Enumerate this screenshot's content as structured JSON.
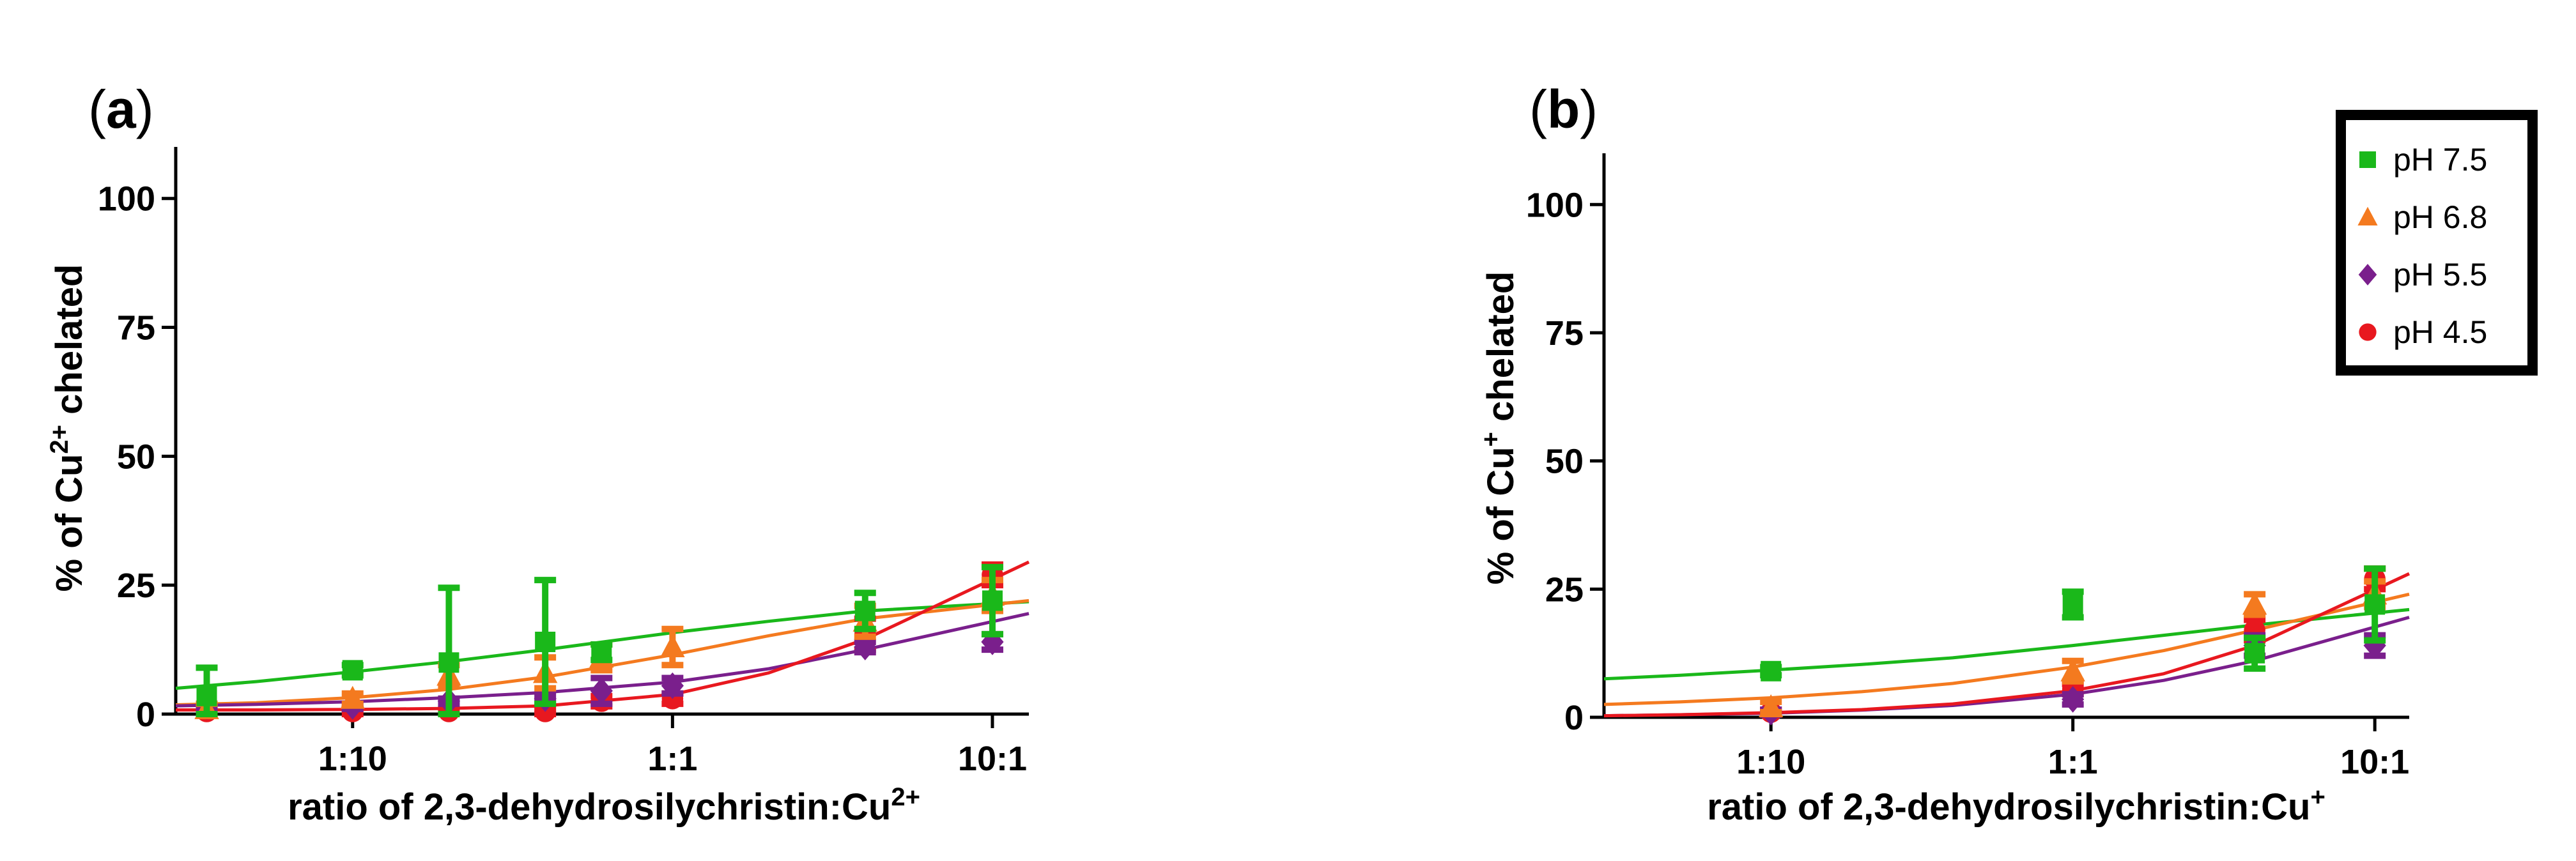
{
  "chart_data": [
    {
      "type": "scatter",
      "panel": "a",
      "xscale": "log",
      "xlim": [
        0.028,
        13
      ],
      "ylim": [
        0,
        110
      ],
      "ylabel_parts": [
        "% of Cu",
        "2+",
        " chelated"
      ],
      "xlabel_parts": [
        "ratio of 2,3-dehydrosilychristin:Cu",
        "2+"
      ],
      "xticks": [
        {
          "value": 0.1,
          "label": "1:10"
        },
        {
          "value": 1,
          "label": "1:1"
        },
        {
          "value": 10,
          "label": "10:1"
        }
      ],
      "yticks": [
        {
          "value": 0,
          "label": "0"
        },
        {
          "value": 25,
          "label": "25"
        },
        {
          "value": 50,
          "label": "50"
        },
        {
          "value": 75,
          "label": "75"
        },
        {
          "value": 100,
          "label": "100"
        }
      ],
      "series": [
        {
          "name": "pH 7.5",
          "color": "#1ab81a",
          "marker": "square",
          "points": [
            {
              "x": 0.035,
              "y": 3.5,
              "err": 5.5
            },
            {
              "x": 0.1,
              "y": 8.5,
              "err": 1
            },
            {
              "x": 0.2,
              "y": 10,
              "err": 14.5
            },
            {
              "x": 0.4,
              "y": 14,
              "err": 12
            },
            {
              "x": 0.6,
              "y": 12,
              "err": 1.5
            },
            {
              "x": 4,
              "y": 20,
              "err": 3.5
            },
            {
              "x": 10,
              "y": 22,
              "err": 6.5
            }
          ],
          "fit": [
            {
              "x": 0.028,
              "y": 5
            },
            {
              "x": 0.05,
              "y": 6.3
            },
            {
              "x": 0.1,
              "y": 8.2
            },
            {
              "x": 0.2,
              "y": 10.2
            },
            {
              "x": 0.4,
              "y": 12.5
            },
            {
              "x": 1,
              "y": 15.8
            },
            {
              "x": 2,
              "y": 18
            },
            {
              "x": 4,
              "y": 20
            },
            {
              "x": 13,
              "y": 21.8
            }
          ]
        },
        {
          "name": "pH 6.8",
          "color": "#f47a1f",
          "marker": "triangle",
          "points": [
            {
              "x": 0.035,
              "y": 1,
              "err": 1
            },
            {
              "x": 0.1,
              "y": 3,
              "err": 1
            },
            {
              "x": 0.2,
              "y": 7.5,
              "err": 2
            },
            {
              "x": 0.4,
              "y": 8,
              "err": 3
            },
            {
              "x": 0.6,
              "y": 11,
              "err": 2.5
            },
            {
              "x": 1,
              "y": 13,
              "err": 3.5
            },
            {
              "x": 4,
              "y": 18,
              "err": 3
            },
            {
              "x": 10,
              "y": 23,
              "err": 3
            }
          ],
          "fit": [
            {
              "x": 0.028,
              "y": 1.8
            },
            {
              "x": 0.05,
              "y": 2.2
            },
            {
              "x": 0.1,
              "y": 3.2
            },
            {
              "x": 0.2,
              "y": 4.8
            },
            {
              "x": 0.4,
              "y": 7.2
            },
            {
              "x": 1,
              "y": 11.5
            },
            {
              "x": 2,
              "y": 15.2
            },
            {
              "x": 4,
              "y": 18.5
            },
            {
              "x": 13,
              "y": 22
            }
          ]
        },
        {
          "name": "pH 5.5",
          "color": "#7a1f8c",
          "marker": "diamond",
          "points": [
            {
              "x": 0.035,
              "y": 1.5,
              "err": 0.5
            },
            {
              "x": 0.1,
              "y": 1.5,
              "err": 0.5
            },
            {
              "x": 0.2,
              "y": 2.5,
              "err": 0.5
            },
            {
              "x": 0.4,
              "y": 3,
              "err": 0.5
            },
            {
              "x": 0.6,
              "y": 4.5,
              "err": 2.5
            },
            {
              "x": 1,
              "y": 5.5,
              "err": 1.5
            },
            {
              "x": 4,
              "y": 13,
              "err": 1
            },
            {
              "x": 10,
              "y": 14,
              "err": 1.5
            }
          ],
          "fit": [
            {
              "x": 0.028,
              "y": 1.6
            },
            {
              "x": 0.05,
              "y": 1.9
            },
            {
              "x": 0.1,
              "y": 2.4
            },
            {
              "x": 0.2,
              "y": 3.2
            },
            {
              "x": 0.4,
              "y": 4.2
            },
            {
              "x": 1,
              "y": 6.2
            },
            {
              "x": 2,
              "y": 8.8
            },
            {
              "x": 4,
              "y": 12.5
            },
            {
              "x": 13,
              "y": 19.5
            }
          ]
        },
        {
          "name": "pH 4.5",
          "color": "#e8181f",
          "marker": "circle",
          "points": [
            {
              "x": 0.035,
              "y": 0.5,
              "err": 0.5
            },
            {
              "x": 0.1,
              "y": 0.5,
              "err": 0.5
            },
            {
              "x": 0.2,
              "y": 0.5,
              "err": 0.5
            },
            {
              "x": 0.4,
              "y": 0.5,
              "err": 0.5
            },
            {
              "x": 0.6,
              "y": 2.5,
              "err": 1
            },
            {
              "x": 1,
              "y": 3,
              "err": 1
            },
            {
              "x": 4,
              "y": 15.5,
              "err": 3
            },
            {
              "x": 10,
              "y": 27,
              "err": 2
            }
          ],
          "fit": [
            {
              "x": 0.028,
              "y": 0.8
            },
            {
              "x": 0.05,
              "y": 0.8
            },
            {
              "x": 0.1,
              "y": 0.9
            },
            {
              "x": 0.2,
              "y": 1.1
            },
            {
              "x": 0.4,
              "y": 1.6
            },
            {
              "x": 1,
              "y": 3.8
            },
            {
              "x": 2,
              "y": 8
            },
            {
              "x": 4,
              "y": 14.5
            },
            {
              "x": 13,
              "y": 29.5
            }
          ]
        }
      ]
    },
    {
      "type": "scatter",
      "panel": "b",
      "xscale": "log",
      "xlim": [
        0.028,
        13
      ],
      "ylim": [
        0,
        110
      ],
      "ylabel_parts": [
        "% of Cu",
        "+",
        " chelated"
      ],
      "xlabel_parts": [
        "ratio of 2,3-dehydrosilychristin:Cu",
        "+"
      ],
      "xticks": [
        {
          "value": 0.1,
          "label": "1:10"
        },
        {
          "value": 1,
          "label": "1:1"
        },
        {
          "value": 10,
          "label": "10:1"
        }
      ],
      "yticks": [
        {
          "value": 0,
          "label": "0"
        },
        {
          "value": 25,
          "label": "25"
        },
        {
          "value": 50,
          "label": "50"
        },
        {
          "value": 75,
          "label": "75"
        },
        {
          "value": 100,
          "label": "100"
        }
      ],
      "series": [
        {
          "name": "pH 7.5",
          "color": "#1ab81a",
          "marker": "square",
          "points": [
            {
              "x": 0.1,
              "y": 9,
              "err": 0.8
            },
            {
              "x": 1,
              "y": 22,
              "err": 2.5
            },
            {
              "x": 4,
              "y": 12.5,
              "err": 3
            },
            {
              "x": 10,
              "y": 22,
              "err": 7
            }
          ],
          "fit": [
            {
              "x": 0.028,
              "y": 7.5
            },
            {
              "x": 0.05,
              "y": 8.2
            },
            {
              "x": 0.1,
              "y": 9.2
            },
            {
              "x": 0.2,
              "y": 10.3
            },
            {
              "x": 0.4,
              "y": 11.6
            },
            {
              "x": 1,
              "y": 14
            },
            {
              "x": 2,
              "y": 16
            },
            {
              "x": 4,
              "y": 18
            },
            {
              "x": 13,
              "y": 21
            }
          ]
        },
        {
          "name": "pH 6.8",
          "color": "#f47a1f",
          "marker": "triangle",
          "points": [
            {
              "x": 0.1,
              "y": 2,
              "err": 1
            },
            {
              "x": 1,
              "y": 9,
              "err": 2
            },
            {
              "x": 4,
              "y": 22,
              "err": 2
            },
            {
              "x": 10,
              "y": 24,
              "err": 2.5
            }
          ],
          "fit": [
            {
              "x": 0.028,
              "y": 2.5
            },
            {
              "x": 0.05,
              "y": 3
            },
            {
              "x": 0.1,
              "y": 3.8
            },
            {
              "x": 0.2,
              "y": 5
            },
            {
              "x": 0.4,
              "y": 6.6
            },
            {
              "x": 1,
              "y": 9.8
            },
            {
              "x": 2,
              "y": 13
            },
            {
              "x": 4,
              "y": 17
            },
            {
              "x": 13,
              "y": 24
            }
          ]
        },
        {
          "name": "pH 5.5",
          "color": "#7a1f8c",
          "marker": "diamond",
          "points": [
            {
              "x": 0.1,
              "y": 1,
              "err": 0.5
            },
            {
              "x": 1,
              "y": 3.5,
              "err": 1
            },
            {
              "x": 4,
              "y": 14,
              "err": 2
            },
            {
              "x": 10,
              "y": 14,
              "err": 2
            }
          ],
          "fit": [
            {
              "x": 0.028,
              "y": 0.3
            },
            {
              "x": 0.05,
              "y": 0.5
            },
            {
              "x": 0.1,
              "y": 0.8
            },
            {
              "x": 0.2,
              "y": 1.4
            },
            {
              "x": 0.4,
              "y": 2.3
            },
            {
              "x": 1,
              "y": 4.5
            },
            {
              "x": 2,
              "y": 7.2
            },
            {
              "x": 4,
              "y": 11
            },
            {
              "x": 13,
              "y": 19.5
            }
          ]
        },
        {
          "name": "pH 4.5",
          "color": "#e8181f",
          "marker": "circle",
          "points": [
            {
              "x": 0.1,
              "y": 1,
              "err": 0.5
            },
            {
              "x": 1,
              "y": 5.5,
              "err": 1
            },
            {
              "x": 4,
              "y": 17,
              "err": 2
            },
            {
              "x": 10,
              "y": 27,
              "err": 2
            }
          ],
          "fit": [
            {
              "x": 0.028,
              "y": 0.3
            },
            {
              "x": 0.05,
              "y": 0.5
            },
            {
              "x": 0.1,
              "y": 0.9
            },
            {
              "x": 0.2,
              "y": 1.5
            },
            {
              "x": 0.4,
              "y": 2.6
            },
            {
              "x": 1,
              "y": 5.2
            },
            {
              "x": 2,
              "y": 8.5
            },
            {
              "x": 4,
              "y": 14
            },
            {
              "x": 13,
              "y": 28
            }
          ]
        }
      ]
    }
  ],
  "legend": {
    "placement": "top-right",
    "entries": [
      {
        "label": "pH 7.5",
        "color": "#1ab81a",
        "marker": "square"
      },
      {
        "label": "pH 6.8",
        "color": "#f47a1f",
        "marker": "triangle"
      },
      {
        "label": "pH 5.5",
        "color": "#7a1f8c",
        "marker": "diamond"
      },
      {
        "label": "pH 4.5",
        "color": "#e8181f",
        "marker": "circle"
      }
    ]
  }
}
